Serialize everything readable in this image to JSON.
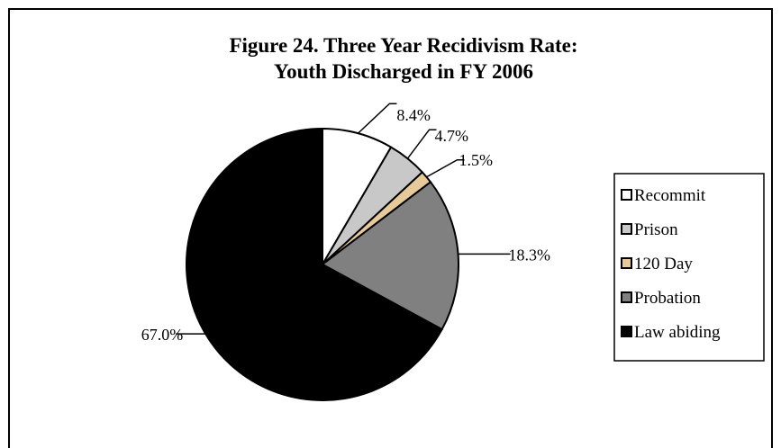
{
  "chart_data": {
    "type": "pie",
    "title": "Figure 24.  Three Year Recidivism Rate:",
    "subtitle": "Youth Discharged in FY 2006",
    "categories": [
      "Recommit",
      "Prison",
      "120 Day",
      "Probation",
      "Law abiding"
    ],
    "values": [
      8.4,
      4.7,
      1.5,
      18.3,
      67.0
    ],
    "labels": [
      "8.4%",
      "4.7%",
      "1.5%",
      "18.3%",
      "67.0%"
    ],
    "colors": [
      "#ffffff",
      "#c8c8c8",
      "#e8c99a",
      "#808080",
      "#000000"
    ],
    "legend_position": "right",
    "start_angle_deg": 0,
    "direction": "clockwise"
  }
}
